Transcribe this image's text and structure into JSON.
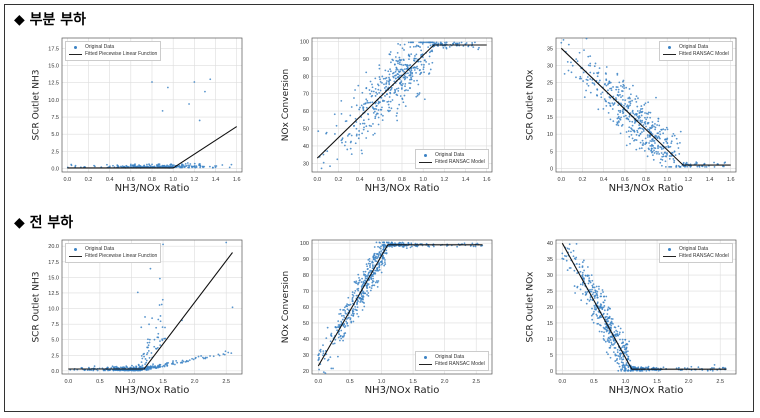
{
  "sections": [
    {
      "label": "부분 부하",
      "marker": "◆"
    },
    {
      "label": "전 부하",
      "marker": "◆"
    }
  ],
  "colors": {
    "points": "#3b82c4",
    "fit": "#111111",
    "grid": "#dddddd"
  },
  "chart_data": [
    {
      "type": "scatter",
      "xlabel": "NH3/NOx Ratio",
      "ylabel": "SCR Outlet NH3",
      "xlim": [
        -0.05,
        1.65
      ],
      "ylim": [
        -0.5,
        19
      ],
      "xticks": [
        0.0,
        0.2,
        0.4,
        0.6,
        0.8,
        1.0,
        1.2,
        1.4,
        1.6
      ],
      "yticks": [
        0.0,
        2.5,
        5.0,
        7.5,
        10.0,
        12.5,
        15.0,
        17.5
      ],
      "legend": {
        "position": "top-left",
        "points": "Original Data",
        "line": "Fitted Piecewise Linear Function"
      },
      "fit_line": {
        "x": [
          0.0,
          1.0,
          1.6
        ],
        "y": [
          0.1,
          0.1,
          6.1
        ]
      },
      "scatter": {
        "mode": "flat",
        "x_range": [
          0.0,
          1.55
        ],
        "center": 0.85,
        "spread": 0.22,
        "n": 260,
        "seed": 11,
        "outliers": [
          [
            1.2,
            12.6
          ],
          [
            1.3,
            11.2
          ],
          [
            0.95,
            11.8
          ],
          [
            0.8,
            12.6
          ],
          [
            1.15,
            9.4
          ],
          [
            1.35,
            13.0
          ],
          [
            1.25,
            7.0
          ],
          [
            0.9,
            8.4
          ]
        ]
      }
    },
    {
      "type": "scatter",
      "xlabel": "NH3/NOx Ratio",
      "ylabel": "NOx Conversion",
      "xlim": [
        -0.05,
        1.65
      ],
      "ylim": [
        25,
        102
      ],
      "xticks": [
        0.0,
        0.2,
        0.4,
        0.6,
        0.8,
        1.0,
        1.2,
        1.4,
        1.6
      ],
      "yticks": [
        30,
        40,
        50,
        60,
        70,
        80,
        90,
        100
      ],
      "legend": {
        "position": "bottom-right",
        "points": "Original Data",
        "line": "Fitted RANSAC Model"
      },
      "fit_line": {
        "x": [
          0.0,
          1.1,
          1.6
        ],
        "y": [
          33,
          98,
          98
        ]
      },
      "scatter": {
        "mode": "ramp-cap",
        "x_range": [
          0.0,
          1.55
        ],
        "center": 0.75,
        "spread": 0.25,
        "n": 520,
        "seed": 23,
        "noise": 9,
        "cap": 98
      }
    },
    {
      "type": "scatter",
      "xlabel": "NH3/NOx Ratio",
      "ylabel": "SCR Outlet NOx",
      "xlim": [
        -0.05,
        1.65
      ],
      "ylim": [
        -1,
        38
      ],
      "xticks": [
        0.0,
        0.2,
        0.4,
        0.6,
        0.8,
        1.0,
        1.2,
        1.4,
        1.6
      ],
      "yticks": [
        0,
        5,
        10,
        15,
        20,
        25,
        30,
        35
      ],
      "legend": {
        "position": "top-right",
        "points": "Original Data",
        "line": "Fitted RANSAC Model"
      },
      "fit_line": {
        "x": [
          0.0,
          1.15,
          1.6
        ],
        "y": [
          35,
          1,
          1
        ]
      },
      "scatter": {
        "mode": "ramp-floor",
        "x_range": [
          0.0,
          1.55
        ],
        "center": 0.75,
        "spread": 0.25,
        "n": 520,
        "seed": 37,
        "noise": 4,
        "floor": 1
      }
    },
    {
      "type": "scatter",
      "xlabel": "NH3/NOx Ratio",
      "ylabel": "SCR Outlet NH3",
      "xlim": [
        -0.1,
        2.75
      ],
      "ylim": [
        -0.5,
        21
      ],
      "xticks": [
        0.0,
        0.5,
        1.0,
        1.5,
        2.0,
        2.5
      ],
      "yticks": [
        0.0,
        2.5,
        5.0,
        7.5,
        10.0,
        12.5,
        15.0,
        17.5,
        20.0
      ],
      "legend": {
        "position": "top-left",
        "points": "Original Data",
        "line": "Fitted Piecewise Linear Function"
      },
      "fit_line": {
        "x": [
          0.0,
          1.2,
          2.6
        ],
        "y": [
          0.3,
          0.3,
          19
        ]
      },
      "scatter": {
        "mode": "flat-rise",
        "x_range": [
          0.0,
          2.6
        ],
        "center": 1.1,
        "spread": 0.3,
        "n": 440,
        "seed": 51,
        "outliers": [
          [
            1.5,
            20.3
          ],
          [
            2.5,
            20.6
          ],
          [
            1.3,
            16.4
          ],
          [
            1.1,
            12.6
          ],
          [
            2.6,
            10.2
          ],
          [
            1.8,
            8.1
          ],
          [
            1.45,
            14.8
          ]
        ]
      }
    },
    {
      "type": "scatter",
      "xlabel": "NH3/NOx Ratio",
      "ylabel": "NOx Conversion",
      "xlim": [
        -0.1,
        2.75
      ],
      "ylim": [
        18,
        102
      ],
      "xticks": [
        0.0,
        0.5,
        1.0,
        1.5,
        2.0,
        2.5
      ],
      "yticks": [
        20,
        30,
        40,
        50,
        60,
        70,
        80,
        90,
        100
      ],
      "legend": {
        "position": "bottom-right",
        "points": "Original Data",
        "line": "Fitted RANSAC Model"
      },
      "fit_line": {
        "x": [
          0.0,
          1.1,
          2.6
        ],
        "y": [
          23,
          99,
          99
        ]
      },
      "scatter": {
        "mode": "ramp-cap",
        "x_range": [
          0.0,
          2.6
        ],
        "center": 0.8,
        "spread": 0.35,
        "n": 560,
        "seed": 63,
        "noise": 6,
        "cap": 99
      }
    },
    {
      "type": "scatter",
      "xlabel": "NH3/NOx Ratio",
      "ylabel": "SCR Outlet NOx",
      "xlim": [
        -0.1,
        2.75
      ],
      "ylim": [
        -1,
        41
      ],
      "xticks": [
        0.0,
        0.5,
        1.0,
        1.5,
        2.0,
        2.5
      ],
      "yticks": [
        0,
        5,
        10,
        15,
        20,
        25,
        30,
        35,
        40
      ],
      "legend": {
        "position": "top-right",
        "points": "Original Data",
        "line": "Fitted RANSAC Model"
      },
      "fit_line": {
        "x": [
          0.0,
          1.1,
          2.6
        ],
        "y": [
          40,
          0.5,
          0.5
        ]
      },
      "scatter": {
        "mode": "ramp-floor",
        "x_range": [
          0.0,
          2.6
        ],
        "center": 0.8,
        "spread": 0.35,
        "n": 560,
        "seed": 79,
        "noise": 3.5,
        "floor": 0.5
      }
    }
  ]
}
